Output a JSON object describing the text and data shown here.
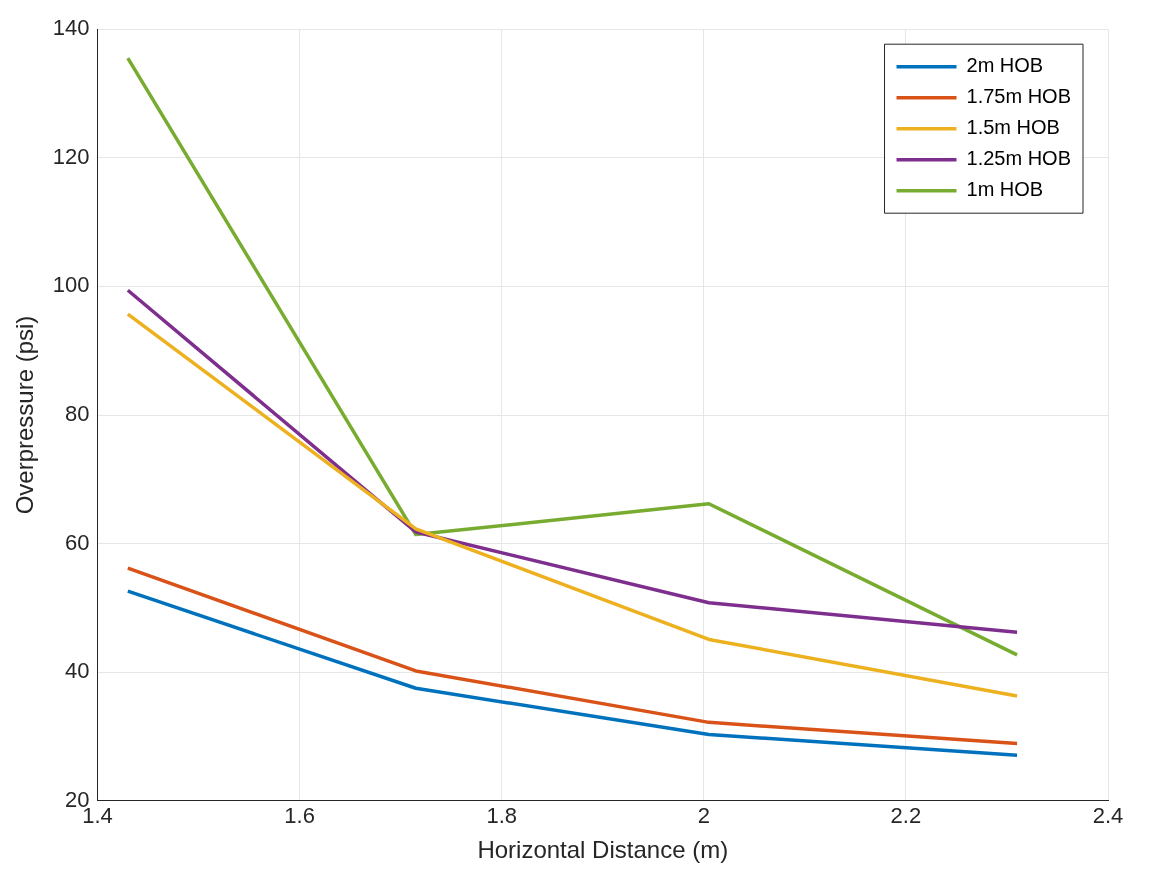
{
  "chart_data": {
    "type": "line",
    "xlabel": "Horizontal Distance (m)",
    "ylabel": "Overpressure (psi)",
    "x": [
      1.43,
      1.715,
      2.005,
      2.31
    ],
    "series": [
      {
        "name": "2m HOB",
        "color": "#0072bd",
        "values": [
          52.6,
          37.5,
          30.3,
          27.1
        ]
      },
      {
        "name": "1.75m HOB",
        "color": "#d95319",
        "values": [
          56.2,
          40.2,
          32.2,
          28.9
        ]
      },
      {
        "name": "1.5m HOB",
        "color": "#edb120",
        "values": [
          95.7,
          62.3,
          45.1,
          36.3
        ]
      },
      {
        "name": "1.25m HOB",
        "color": "#7e2f8e",
        "values": [
          99.4,
          61.8,
          50.8,
          46.2
        ]
      },
      {
        "name": "1m HOB",
        "color": "#77ac30",
        "values": [
          135.5,
          61.4,
          66.2,
          42.7
        ]
      }
    ],
    "xlim": [
      1.4,
      2.4
    ],
    "xticks": [
      1.4,
      1.6,
      1.8,
      2,
      2.2,
      2.4
    ],
    "ylim": [
      20,
      140
    ],
    "yticks": [
      20,
      40,
      60,
      80,
      100,
      120,
      140
    ],
    "grid": true,
    "legend": "top right",
    "marker": "none",
    "line_style": "solid"
  }
}
